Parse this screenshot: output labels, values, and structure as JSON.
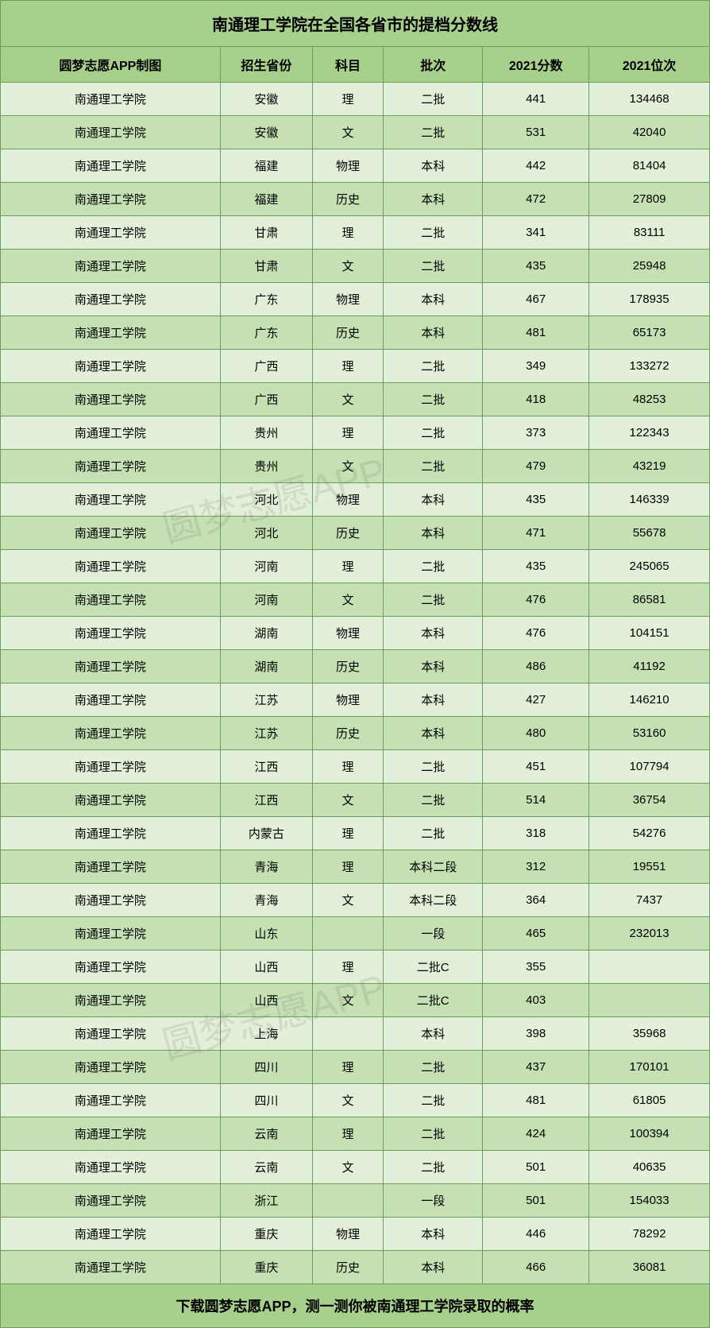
{
  "title": "南通理工学院在全国各省市的提档分数线",
  "footer": "下载圆梦志愿APP，测一测你被南通理工学院录取的概率",
  "watermark": "圆梦志愿APP",
  "colors": {
    "header_bg": "#a8d08d",
    "even_row_bg": "#e2efd9",
    "odd_row_bg": "#c5e0b3",
    "border": "#6b9e5a",
    "text": "#000000"
  },
  "columns": [
    "圆梦志愿APP制图",
    "招生省份",
    "科目",
    "批次",
    "2021分数",
    "2021位次"
  ],
  "rows": [
    [
      "南通理工学院",
      "安徽",
      "理",
      "二批",
      "441",
      "134468"
    ],
    [
      "南通理工学院",
      "安徽",
      "文",
      "二批",
      "531",
      "42040"
    ],
    [
      "南通理工学院",
      "福建",
      "物理",
      "本科",
      "442",
      "81404"
    ],
    [
      "南通理工学院",
      "福建",
      "历史",
      "本科",
      "472",
      "27809"
    ],
    [
      "南通理工学院",
      "甘肃",
      "理",
      "二批",
      "341",
      "83111"
    ],
    [
      "南通理工学院",
      "甘肃",
      "文",
      "二批",
      "435",
      "25948"
    ],
    [
      "南通理工学院",
      "广东",
      "物理",
      "本科",
      "467",
      "178935"
    ],
    [
      "南通理工学院",
      "广东",
      "历史",
      "本科",
      "481",
      "65173"
    ],
    [
      "南通理工学院",
      "广西",
      "理",
      "二批",
      "349",
      "133272"
    ],
    [
      "南通理工学院",
      "广西",
      "文",
      "二批",
      "418",
      "48253"
    ],
    [
      "南通理工学院",
      "贵州",
      "理",
      "二批",
      "373",
      "122343"
    ],
    [
      "南通理工学院",
      "贵州",
      "文",
      "二批",
      "479",
      "43219"
    ],
    [
      "南通理工学院",
      "河北",
      "物理",
      "本科",
      "435",
      "146339"
    ],
    [
      "南通理工学院",
      "河北",
      "历史",
      "本科",
      "471",
      "55678"
    ],
    [
      "南通理工学院",
      "河南",
      "理",
      "二批",
      "435",
      "245065"
    ],
    [
      "南通理工学院",
      "河南",
      "文",
      "二批",
      "476",
      "86581"
    ],
    [
      "南通理工学院",
      "湖南",
      "物理",
      "本科",
      "476",
      "104151"
    ],
    [
      "南通理工学院",
      "湖南",
      "历史",
      "本科",
      "486",
      "41192"
    ],
    [
      "南通理工学院",
      "江苏",
      "物理",
      "本科",
      "427",
      "146210"
    ],
    [
      "南通理工学院",
      "江苏",
      "历史",
      "本科",
      "480",
      "53160"
    ],
    [
      "南通理工学院",
      "江西",
      "理",
      "二批",
      "451",
      "107794"
    ],
    [
      "南通理工学院",
      "江西",
      "文",
      "二批",
      "514",
      "36754"
    ],
    [
      "南通理工学院",
      "内蒙古",
      "理",
      "二批",
      "318",
      "54276"
    ],
    [
      "南通理工学院",
      "青海",
      "理",
      "本科二段",
      "312",
      "19551"
    ],
    [
      "南通理工学院",
      "青海",
      "文",
      "本科二段",
      "364",
      "7437"
    ],
    [
      "南通理工学院",
      "山东",
      "",
      "一段",
      "465",
      "232013"
    ],
    [
      "南通理工学院",
      "山西",
      "理",
      "二批C",
      "355",
      ""
    ],
    [
      "南通理工学院",
      "山西",
      "文",
      "二批C",
      "403",
      ""
    ],
    [
      "南通理工学院",
      "上海",
      "",
      "本科",
      "398",
      "35968"
    ],
    [
      "南通理工学院",
      "四川",
      "理",
      "二批",
      "437",
      "170101"
    ],
    [
      "南通理工学院",
      "四川",
      "文",
      "二批",
      "481",
      "61805"
    ],
    [
      "南通理工学院",
      "云南",
      "理",
      "二批",
      "424",
      "100394"
    ],
    [
      "南通理工学院",
      "云南",
      "文",
      "二批",
      "501",
      "40635"
    ],
    [
      "南通理工学院",
      "浙江",
      "",
      "一段",
      "501",
      "154033"
    ],
    [
      "南通理工学院",
      "重庆",
      "物理",
      "本科",
      "446",
      "78292"
    ],
    [
      "南通理工学院",
      "重庆",
      "历史",
      "本科",
      "466",
      "36081"
    ]
  ]
}
